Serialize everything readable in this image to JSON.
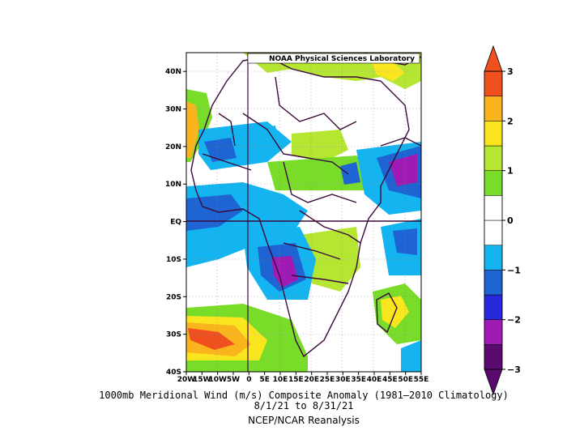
{
  "map": {
    "lab_label": "NOAA Physical Sciences Laboratory",
    "lat_ticks": [
      {
        "label": "40N",
        "lat": 40
      },
      {
        "label": "30N",
        "lat": 30
      },
      {
        "label": "20N",
        "lat": 20
      },
      {
        "label": "10N",
        "lat": 10
      },
      {
        "label": "EQ",
        "lat": 0
      },
      {
        "label": "10S",
        "lat": -10
      },
      {
        "label": "20S",
        "lat": -20
      },
      {
        "label": "30S",
        "lat": -30
      },
      {
        "label": "40S",
        "lat": -40
      }
    ],
    "lon_ticks": [
      {
        "label": "20W",
        "lon": -20
      },
      {
        "label": "15W",
        "lon": -15
      },
      {
        "label": "10W",
        "lon": -10
      },
      {
        "label": "5W",
        "lon": -5
      },
      {
        "label": "0",
        "lon": 0
      },
      {
        "label": "5E",
        "lon": 5
      },
      {
        "label": "10E",
        "lon": 10
      },
      {
        "label": "15E",
        "lon": 15
      },
      {
        "label": "20E",
        "lon": 20
      },
      {
        "label": "25E",
        "lon": 25
      },
      {
        "label": "30E",
        "lon": 30
      },
      {
        "label": "35E",
        "lon": 35
      },
      {
        "label": "40E",
        "lon": 40
      },
      {
        "label": "45E",
        "lon": 45
      },
      {
        "label": "50E",
        "lon": 50
      },
      {
        "label": "55E",
        "lon": 55
      }
    ],
    "extent": {
      "lon_min": -20,
      "lon_max": 55,
      "lat_min": -40,
      "lat_max": 45
    }
  },
  "colorbar": {
    "labels": [
      "3",
      "2",
      "1",
      "0",
      "−1",
      "−2",
      "−3"
    ],
    "colors": [
      "#5a0a6e",
      "#a01ab4",
      "#2828dc",
      "#1e64d2",
      "#14b4f0",
      "#ffffff",
      "#ffffff",
      "#78dc28",
      "#b4e632",
      "#fae61e",
      "#fab41e",
      "#f0501e"
    ]
  },
  "title": {
    "line1": "1000mb Meridional Wind (m/s) Composite Anomaly (1981–2010 Climatology)",
    "line2": "8/1/21  to 8/31/21",
    "line3": "NCEP/NCAR Reanalysis"
  }
}
